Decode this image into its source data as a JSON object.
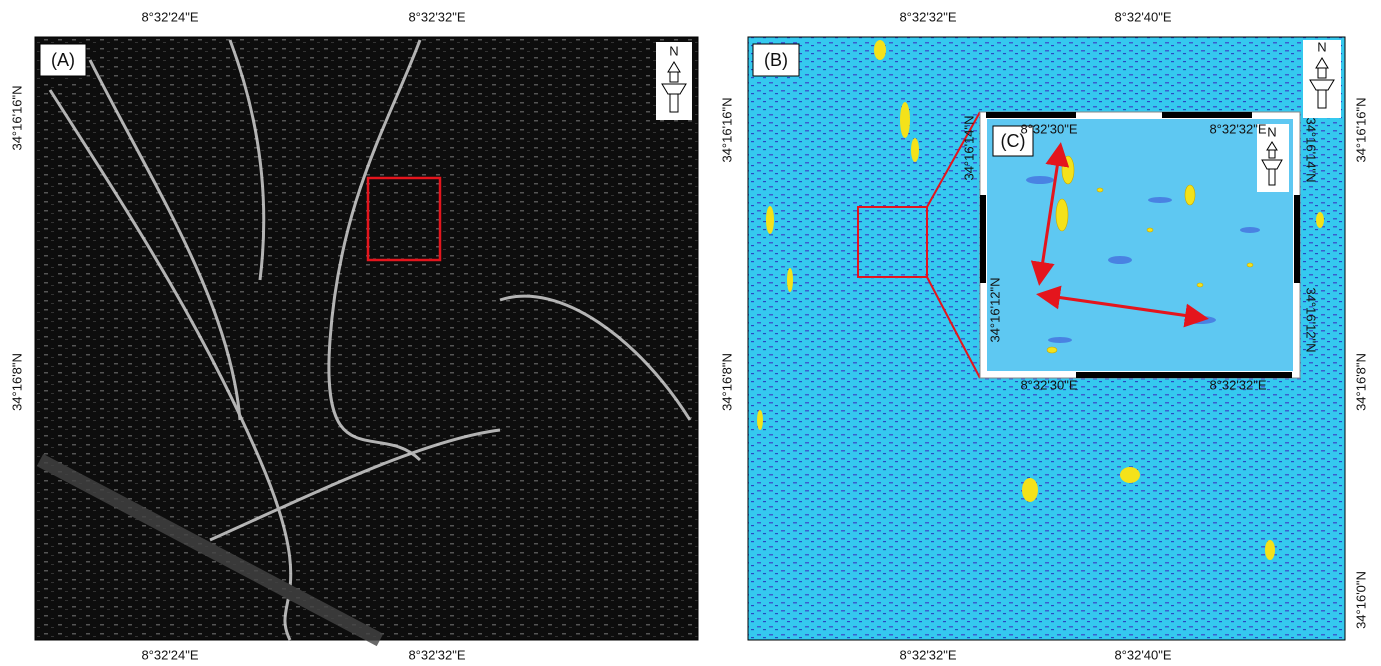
{
  "panels": [
    {
      "label": "(A)",
      "north": "N",
      "top_ticks": [
        "8°32'24\"E",
        "8°32'32\"E"
      ],
      "bottom_ticks": [
        "8°32'24\"E",
        "8°32'32\"E"
      ],
      "left_ticks": [
        "34°16'16\"N",
        "34°16'8\"N"
      ]
    },
    {
      "label": "(B)",
      "north": "N",
      "top_ticks": [
        "8°32'32\"E",
        "8°32'40\"E"
      ],
      "bottom_ticks": [
        "8°32'32\"E",
        "8°32'40\"E"
      ],
      "left_ticks": [
        "34°16'16\"N",
        "34°16'8\"N"
      ],
      "right_ticks": [
        "34°16'16\"N",
        "34°16'8\"N",
        "34°16'0\"N"
      ]
    },
    {
      "label": "(C)",
      "north": "N",
      "top_ticks": [
        "8°32'30\"E",
        "8°32'32\"E"
      ],
      "bottom_ticks": [
        "8°32'30\"E",
        "8°32'32\"E"
      ],
      "left_ticks": [
        "34°16'14\"N",
        "34°16'12\"N"
      ],
      "right_ticks": [
        "34°16'14\"N",
        "34°16'12\"N"
      ]
    }
  ]
}
